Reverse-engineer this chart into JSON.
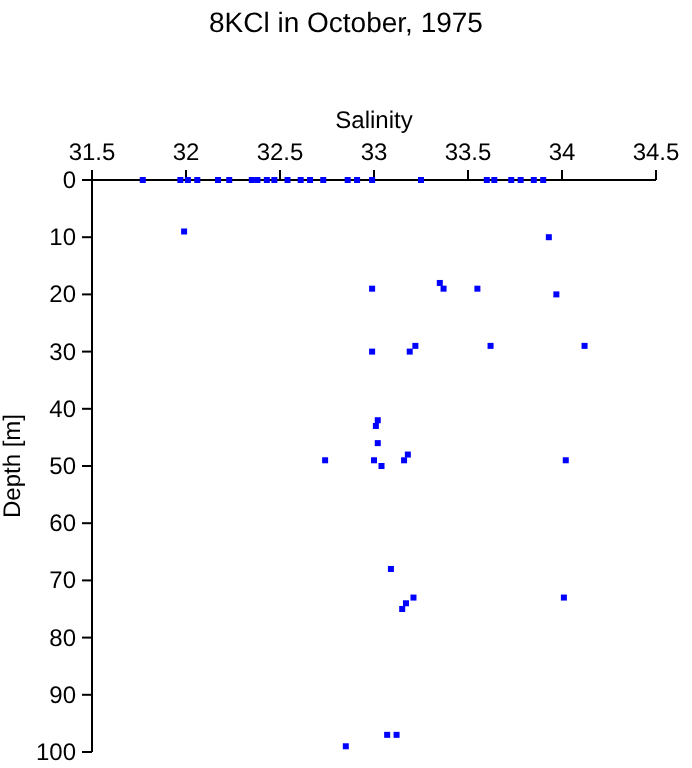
{
  "chart_data": {
    "type": "scatter",
    "title": "8KCl in October, 1975",
    "xlabel": "Salinity",
    "ylabel": "Depth [m]",
    "xlim": [
      31.5,
      34.5
    ],
    "xticks": [
      31.5,
      32,
      32.5,
      33,
      33.5,
      34,
      34.5
    ],
    "ylim": [
      100,
      0
    ],
    "yticks": [
      0,
      10,
      20,
      30,
      40,
      50,
      60,
      70,
      80,
      90,
      100
    ],
    "grid": false,
    "marker": "square",
    "series": [
      {
        "color": "#0000ff",
        "x": [
          31.77,
          31.97,
          32.01,
          32.06,
          32.17,
          32.23,
          32.35,
          32.38,
          32.43,
          32.47,
          32.54,
          32.61,
          32.66,
          32.73,
          32.86,
          32.91,
          32.99,
          33.25,
          33.6,
          33.64,
          33.73,
          33.78,
          33.85,
          33.9,
          31.99,
          33.93,
          32.99,
          33.35,
          33.37,
          33.55,
          33.97,
          32.99,
          33.19,
          33.22,
          33.62,
          34.12,
          33.02,
          33.01,
          33.02,
          32.74,
          33.0,
          33.04,
          33.16,
          33.18,
          34.02,
          33.09,
          33.21,
          33.17,
          33.15,
          34.01,
          33.07,
          33.12,
          32.85
        ],
        "values": [
          0,
          0,
          0,
          0,
          0,
          0,
          0,
          0,
          0,
          0,
          0,
          0,
          0,
          0,
          0,
          0,
          0,
          0,
          0,
          0,
          0,
          0,
          0,
          0,
          9,
          10,
          19,
          18,
          19,
          19,
          20,
          30,
          30,
          29,
          29,
          29,
          42,
          43,
          46,
          49,
          49,
          50,
          49,
          48,
          49,
          68,
          73,
          74,
          75,
          73,
          97,
          97,
          99
        ]
      }
    ]
  }
}
